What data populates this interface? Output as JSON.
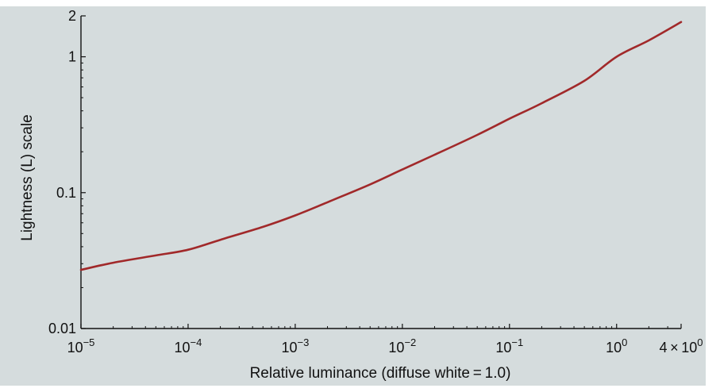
{
  "colors": {
    "panel_background": "#d5dcdd",
    "curve": "#a1292a",
    "axis": "#111111"
  },
  "chart_data": {
    "type": "line",
    "title": "",
    "xlabel": "Relative luminance (diffuse white = 1.0)",
    "ylabel": "Lightness (L) scale",
    "xscale": "log",
    "yscale": "log",
    "xlim": [
      1e-05,
      4
    ],
    "ylim": [
      0.01,
      2
    ],
    "grid": false,
    "x_ticks": [
      {
        "value": 1e-05,
        "base": "10",
        "exp": "−5",
        "mult": ""
      },
      {
        "value": 0.0001,
        "base": "10",
        "exp": "−4",
        "mult": ""
      },
      {
        "value": 0.001,
        "base": "10",
        "exp": "−3",
        "mult": ""
      },
      {
        "value": 0.01,
        "base": "10",
        "exp": "−2",
        "mult": ""
      },
      {
        "value": 0.1,
        "base": "10",
        "exp": "−1",
        "mult": ""
      },
      {
        "value": 1,
        "base": "10",
        "exp": "0",
        "mult": ""
      },
      {
        "value": 4,
        "base": "10",
        "exp": "0",
        "mult": "4 × "
      }
    ],
    "y_ticks": [
      {
        "value": 0.01,
        "label": "0.01"
      },
      {
        "value": 0.1,
        "label": "0.1"
      },
      {
        "value": 1,
        "label": "1"
      },
      {
        "value": 2,
        "label": "2"
      }
    ],
    "series": [
      {
        "x": [
          1e-05,
          2e-05,
          5e-05,
          0.0001,
          0.0002,
          0.0005,
          0.001,
          0.002,
          0.005,
          0.01,
          0.02,
          0.05,
          0.1,
          0.2,
          0.5,
          1,
          2,
          4
        ],
        "y": [
          0.027,
          0.0305,
          0.0345,
          0.038,
          0.045,
          0.056,
          0.068,
          0.085,
          0.115,
          0.148,
          0.19,
          0.266,
          0.35,
          0.455,
          0.665,
          1.0,
          1.32,
          1.8
        ]
      }
    ]
  }
}
